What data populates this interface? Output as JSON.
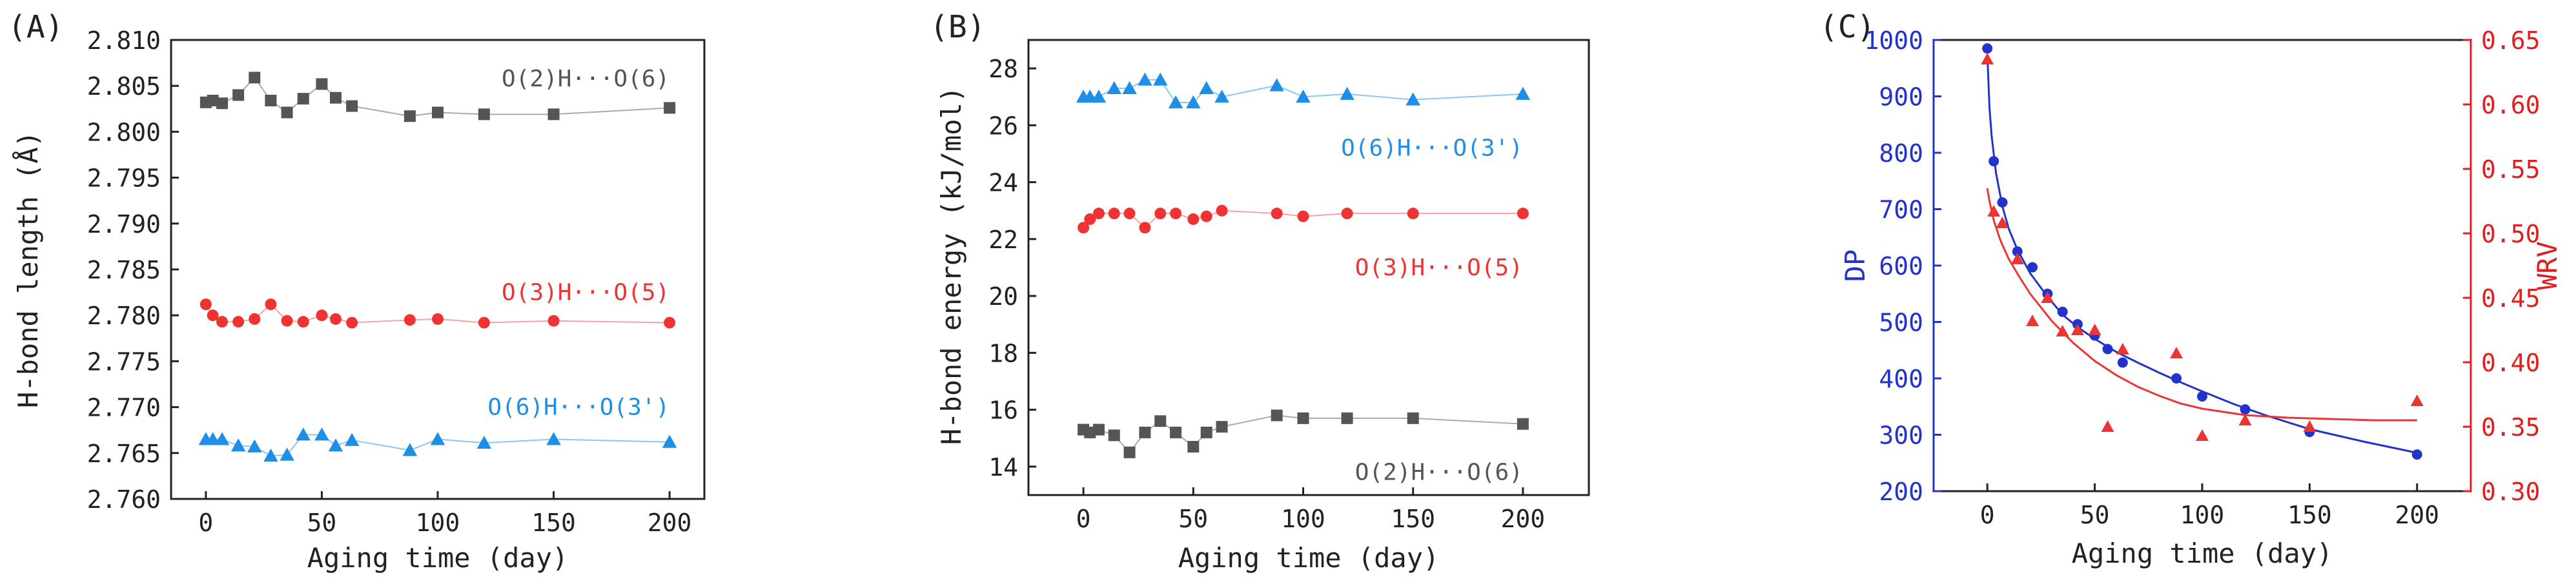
{
  "panels": [
    {
      "id": "A",
      "label": "(A)",
      "chart_data": {
        "type": "scatter",
        "xlabel": "Aging time (day)",
        "ylabel": "H-bond length (Å)",
        "xlim": [
          -15,
          215
        ],
        "ylim": [
          2.76,
          2.81
        ],
        "xticks": [
          0,
          50,
          100,
          150,
          200
        ],
        "yticks": [
          2.76,
          2.765,
          2.77,
          2.775,
          2.78,
          2.785,
          2.79,
          2.795,
          2.8,
          2.805,
          2.81
        ],
        "ytick_decimals": 3,
        "series": [
          {
            "name": "O(2)H···O(6)",
            "color": "#555555",
            "line_color": "#aaaaaa",
            "marker": "square",
            "x": [
              0,
              3,
              7,
              14,
              21,
              28,
              35,
              42,
              50,
              56,
              63,
              88,
              100,
              120,
              150,
              200
            ],
            "y": [
              2.8032,
              2.8034,
              2.8031,
              2.804,
              2.8059,
              2.8034,
              2.8021,
              2.8036,
              2.8052,
              2.8037,
              2.8028,
              2.8017,
              2.8021,
              2.8019,
              2.8019,
              2.8026
            ],
            "label_at": [
              200,
              2.8058
            ]
          },
          {
            "name": "O(3)H···O(5)",
            "color": "#ee3333",
            "line_color": "#f4a3a3",
            "marker": "circle",
            "x": [
              0,
              3,
              7,
              14,
              21,
              28,
              35,
              42,
              50,
              56,
              63,
              88,
              100,
              120,
              150,
              200
            ],
            "y": [
              2.7812,
              2.78,
              2.7793,
              2.7793,
              2.7796,
              2.7812,
              2.7794,
              2.7793,
              2.78,
              2.7796,
              2.7792,
              2.7795,
              2.7796,
              2.7792,
              2.7794,
              2.7792
            ],
            "label_at": [
              200,
              2.7825
            ]
          },
          {
            "name": "O(6)H···O(3')",
            "color": "#1e8fe6",
            "line_color": "#8cc6f0",
            "marker": "triangle",
            "x": [
              0,
              3,
              7,
              14,
              21,
              28,
              35,
              42,
              50,
              56,
              63,
              88,
              100,
              120,
              150,
              200
            ],
            "y": [
              2.7665,
              2.7665,
              2.7665,
              2.7658,
              2.7657,
              2.7647,
              2.7648,
              2.767,
              2.767,
              2.7658,
              2.7664,
              2.7653,
              2.7665,
              2.7661,
              2.7665,
              2.7662
            ],
            "label_at": [
              200,
              2.77
            ]
          }
        ]
      }
    },
    {
      "id": "B",
      "label": "(B)",
      "chart_data": {
        "type": "scatter",
        "xlabel": "Aging time (day)",
        "ylabel": "H-bond energy (kJ/mol)",
        "xlim": [
          -25,
          230
        ],
        "ylim": [
          13,
          29
        ],
        "xticks": [
          0,
          50,
          100,
          150,
          200
        ],
        "yticks": [
          14,
          16,
          18,
          20,
          22,
          24,
          26,
          28
        ],
        "ytick_decimals": 0,
        "series": [
          {
            "name": "O(6)H···O(3')",
            "color": "#1e8fe6",
            "line_color": "#8cc6f0",
            "marker": "triangle",
            "x": [
              0,
              3,
              7,
              14,
              21,
              28,
              35,
              42,
              50,
              56,
              63,
              88,
              100,
              120,
              150,
              200
            ],
            "y": [
              27.0,
              27.0,
              27.0,
              27.3,
              27.3,
              27.6,
              27.6,
              26.8,
              26.8,
              27.3,
              27.0,
              27.4,
              27.0,
              27.1,
              26.9,
              27.1
            ],
            "label_at": [
              200,
              25.2
            ]
          },
          {
            "name": "O(3)H···O(5)",
            "color": "#ee3333",
            "line_color": "#f4a3a3",
            "marker": "circle",
            "x": [
              0,
              3,
              7,
              14,
              21,
              28,
              35,
              42,
              50,
              56,
              63,
              88,
              100,
              120,
              150,
              200
            ],
            "y": [
              22.4,
              22.7,
              22.9,
              22.9,
              22.9,
              22.4,
              22.9,
              22.9,
              22.7,
              22.8,
              23.0,
              22.9,
              22.8,
              22.9,
              22.9,
              22.9
            ],
            "label_at": [
              200,
              21.0
            ]
          },
          {
            "name": "O(2)H···O(6)",
            "color": "#555555",
            "line_color": "#aaaaaa",
            "marker": "square",
            "x": [
              0,
              3,
              7,
              14,
              21,
              28,
              35,
              42,
              50,
              56,
              63,
              88,
              100,
              120,
              150,
              200
            ],
            "y": [
              15.3,
              15.2,
              15.3,
              15.1,
              14.5,
              15.2,
              15.6,
              15.2,
              14.7,
              15.2,
              15.4,
              15.8,
              15.7,
              15.7,
              15.7,
              15.5
            ],
            "label_at": [
              200,
              13.8
            ]
          }
        ]
      }
    },
    {
      "id": "C",
      "label": "(C)",
      "chart_data": {
        "type": "scatter",
        "xlabel": "Aging time (day)",
        "ylabel": "DP",
        "ylabel_right": "WRV",
        "xlim": [
          -25,
          225
        ],
        "ylim": [
          200,
          1000
        ],
        "ylim_right": [
          0.3,
          0.65
        ],
        "xticks": [
          0,
          50,
          100,
          150,
          200
        ],
        "yticks": [
          200,
          300,
          400,
          500,
          600,
          700,
          800,
          900,
          1000
        ],
        "yticks_right": [
          0.3,
          0.35,
          0.4,
          0.45,
          0.5,
          0.55,
          0.6,
          0.65
        ],
        "left_axis_color": "#2233cc",
        "right_axis_color": "#e02020",
        "series": [
          {
            "name": "DP",
            "axis": "left",
            "color": "#2233cc",
            "marker": "circle",
            "x": [
              0,
              3,
              7,
              14,
              21,
              28,
              35,
              42,
              50,
              56,
              63,
              88,
              100,
              120,
              150,
              200
            ],
            "y": [
              985,
              785,
              712,
              625,
              597,
              550,
              518,
              496,
              476,
              452,
              428,
              400,
              368,
              345,
              305,
              265
            ],
            "fit_x": [
              0,
              1,
              2,
              4,
              7,
              10,
              14,
              20,
              28,
              35,
              42,
              50,
              60,
              70,
              80,
              90,
              100,
              115,
              130,
              150,
              175,
              200
            ],
            "fit_y": [
              975,
              880,
              830,
              765,
              705,
              665,
              628,
              586,
              545,
              513,
              491,
              470,
              447,
              428,
              410,
              393,
              377,
              354,
              334,
              310,
              288,
              268
            ]
          },
          {
            "name": "WRV",
            "axis": "right",
            "color": "#ee3333",
            "marker": "triangle",
            "x": [
              0,
              3,
              7,
              14,
              21,
              28,
              35,
              42,
              50,
              56,
              63,
              88,
              100,
              120,
              150,
              200
            ],
            "y": [
              0.635,
              0.517,
              0.508,
              0.48,
              0.432,
              0.45,
              0.424,
              0.425,
              0.425,
              0.35,
              0.41,
              0.407,
              0.343,
              0.355,
              0.35,
              0.37
            ],
            "fit_x": [
              0,
              1,
              3,
              6,
              10,
              15,
              20,
              30,
              40,
              50,
              60,
              70,
              80,
              90,
              100,
              120,
              140,
              160,
              180,
              200
            ],
            "fit_y": [
              0.535,
              0.525,
              0.51,
              0.495,
              0.48,
              0.466,
              0.453,
              0.432,
              0.415,
              0.401,
              0.39,
              0.381,
              0.374,
              0.368,
              0.364,
              0.359,
              0.357,
              0.356,
              0.355,
              0.355
            ]
          }
        ]
      }
    }
  ]
}
